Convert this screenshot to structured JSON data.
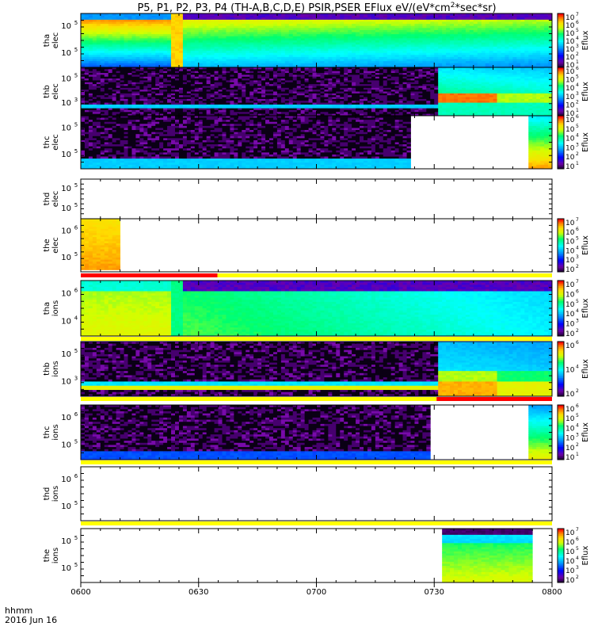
{
  "title": "P5, P1, P2, P3, P4 (TH-A,B,C,D,E) PSIR,PSER EFlux eV/(eV*cm",
  "title_sup": "2",
  "title_tail": "*sec*sr)",
  "footer": {
    "hhmm": "hhmm",
    "date": "2016 Jun 16"
  },
  "colors": {
    "red_bar": "#ff0000",
    "yellow_bar": "#ffff00",
    "fill_white": "#ffffff"
  },
  "chart_data": {
    "type": "heatmap",
    "x_ticks": [
      "0600",
      "0630",
      "0700",
      "0730",
      "0800"
    ],
    "x_range": [
      "06:00",
      "08:00"
    ],
    "colorbar_label": "Eflux",
    "panels": [
      {
        "probe": "tha",
        "species": "elec",
        "y_ticks": [
          "10",
          "10"
        ],
        "y_exp": [
          "5",
          "5"
        ],
        "colorbar": [
          "7",
          "6",
          "5",
          "4",
          "3",
          "2",
          "1"
        ],
        "pattern": "full_decay"
      },
      {
        "probe": "thb",
        "species": "elec",
        "y_ticks": [
          "10",
          "10"
        ],
        "y_exp": [
          "5",
          "3"
        ],
        "colorbar": [
          "6",
          "5",
          "4",
          "3",
          "2",
          "1"
        ],
        "pattern": "noise_then_block"
      },
      {
        "probe": "thc",
        "species": "elec",
        "y_ticks": [
          "10",
          "10"
        ],
        "y_exp": [
          "5",
          "5"
        ],
        "colorbar": [
          "6",
          "5",
          "4",
          "3",
          "2",
          "1"
        ],
        "pattern": "noise_gap"
      },
      {
        "probe": "thd",
        "species": "elec",
        "y_ticks": [
          "10",
          "10"
        ],
        "y_exp": [
          "5",
          "5"
        ],
        "colorbar": [],
        "pattern": "empty"
      },
      {
        "probe": "the",
        "species": "elec",
        "y_ticks": [
          "10",
          "10"
        ],
        "y_exp": [
          "6",
          "5"
        ],
        "colorbar": [
          "7",
          "6",
          "5",
          "4",
          "3",
          "2"
        ],
        "pattern": "short_orange"
      },
      {
        "probe": "tha",
        "species": "ions",
        "y_ticks": [
          "10",
          "10"
        ],
        "y_exp": [
          "6",
          "4"
        ],
        "colorbar": [
          "7",
          "6",
          "5",
          "4",
          "3",
          "2"
        ],
        "pattern": "ion_decay"
      },
      {
        "probe": "thb",
        "species": "ions",
        "y_ticks": [
          "10",
          "10"
        ],
        "y_exp": [
          "5",
          "3"
        ],
        "colorbar": [
          "6",
          "4",
          "2"
        ],
        "pattern": "ion_noise_block"
      },
      {
        "probe": "thc",
        "species": "ions",
        "y_ticks": [
          "10",
          "10"
        ],
        "y_exp": [
          "6",
          "5"
        ],
        "colorbar": [
          "6",
          "5",
          "4",
          "3",
          "2",
          "1"
        ],
        "pattern": "ion_noise_gap"
      },
      {
        "probe": "thd",
        "species": "ions",
        "y_ticks": [
          "10",
          "10"
        ],
        "y_exp": [
          "6",
          "5"
        ],
        "colorbar": [],
        "pattern": "empty"
      },
      {
        "probe": "the",
        "species": "ions",
        "y_ticks": [
          "10",
          "10"
        ],
        "y_exp": [
          "5",
          "5"
        ],
        "colorbar": [
          "7",
          "6",
          "5",
          "4",
          "3",
          "2"
        ],
        "pattern": "late_block"
      }
    ]
  }
}
